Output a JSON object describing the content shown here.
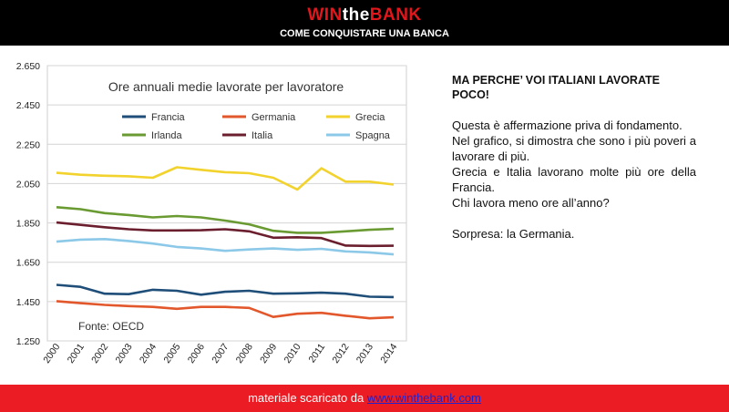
{
  "header": {
    "brand_win": "WIN",
    "brand_the": "the",
    "brand_bank": "BANK",
    "subtitle": "COME CONQUISTARE UNA BANCA"
  },
  "right_panel": {
    "heading": "MA PERCHE’ VOI ITALIANI LAVORATE POCO!",
    "p1": "Questa è affermazione priva di fondamento.",
    "p2": "Nel grafico, si dimostra che sono i più poveri a lavorare di più.",
    "p3": "Grecia e Italia lavorano molte più ore della Francia.",
    "p4": "Chi lavora meno ore all’anno?",
    "p5": "Sorpresa: la Germania."
  },
  "footer": {
    "text": "materiale scaricato da",
    "link": "www.winthebank.com"
  },
  "chart_data": {
    "type": "line",
    "title": "Ore annuali medie lavorate per lavoratore",
    "source_note": "Fonte: OECD",
    "x": [
      "2000",
      "2001",
      "2002",
      "2003",
      "2004",
      "2005",
      "2006",
      "2007",
      "2008",
      "2009",
      "2010",
      "2011",
      "2012",
      "2013",
      "2014"
    ],
    "ylim": [
      1250,
      2650
    ],
    "y_ticks": [
      "2.650",
      "2.450",
      "2.250",
      "2.050",
      "1.850",
      "1.650",
      "1.450",
      "1.250"
    ],
    "y_tick_values": [
      2650,
      2450,
      2250,
      2050,
      1850,
      1650,
      1450,
      1250
    ],
    "grid": true,
    "legend_placement": "top",
    "series": [
      {
        "name": "Francia",
        "color": "#1f4e79",
        "values": [
          1535,
          1525,
          1490,
          1488,
          1510,
          1505,
          1485,
          1500,
          1505,
          1490,
          1492,
          1495,
          1490,
          1475,
          1473
        ]
      },
      {
        "name": "Germania",
        "color": "#e2572b",
        "values": [
          1452,
          1442,
          1433,
          1427,
          1423,
          1413,
          1423,
          1423,
          1418,
          1372,
          1388,
          1393,
          1378,
          1365,
          1370
        ]
      },
      {
        "name": "Grecia",
        "color": "#f2d22c",
        "values": [
          2105,
          2095,
          2090,
          2087,
          2080,
          2133,
          2120,
          2108,
          2103,
          2080,
          2020,
          2128,
          2060,
          2060,
          2045
        ]
      },
      {
        "name": "Irlanda",
        "color": "#6a9a32",
        "values": [
          1930,
          1920,
          1900,
          1890,
          1878,
          1885,
          1878,
          1862,
          1843,
          1810,
          1800,
          1800,
          1807,
          1815,
          1820
        ]
      },
      {
        "name": "Italia",
        "color": "#6b1f2e",
        "values": [
          1852,
          1840,
          1828,
          1818,
          1812,
          1812,
          1813,
          1818,
          1807,
          1775,
          1777,
          1773,
          1735,
          1733,
          1734
        ]
      },
      {
        "name": "Spagna",
        "color": "#8cc8e8",
        "values": [
          1755,
          1765,
          1768,
          1758,
          1745,
          1728,
          1720,
          1708,
          1715,
          1720,
          1713,
          1718,
          1705,
          1700,
          1690
        ]
      }
    ]
  }
}
